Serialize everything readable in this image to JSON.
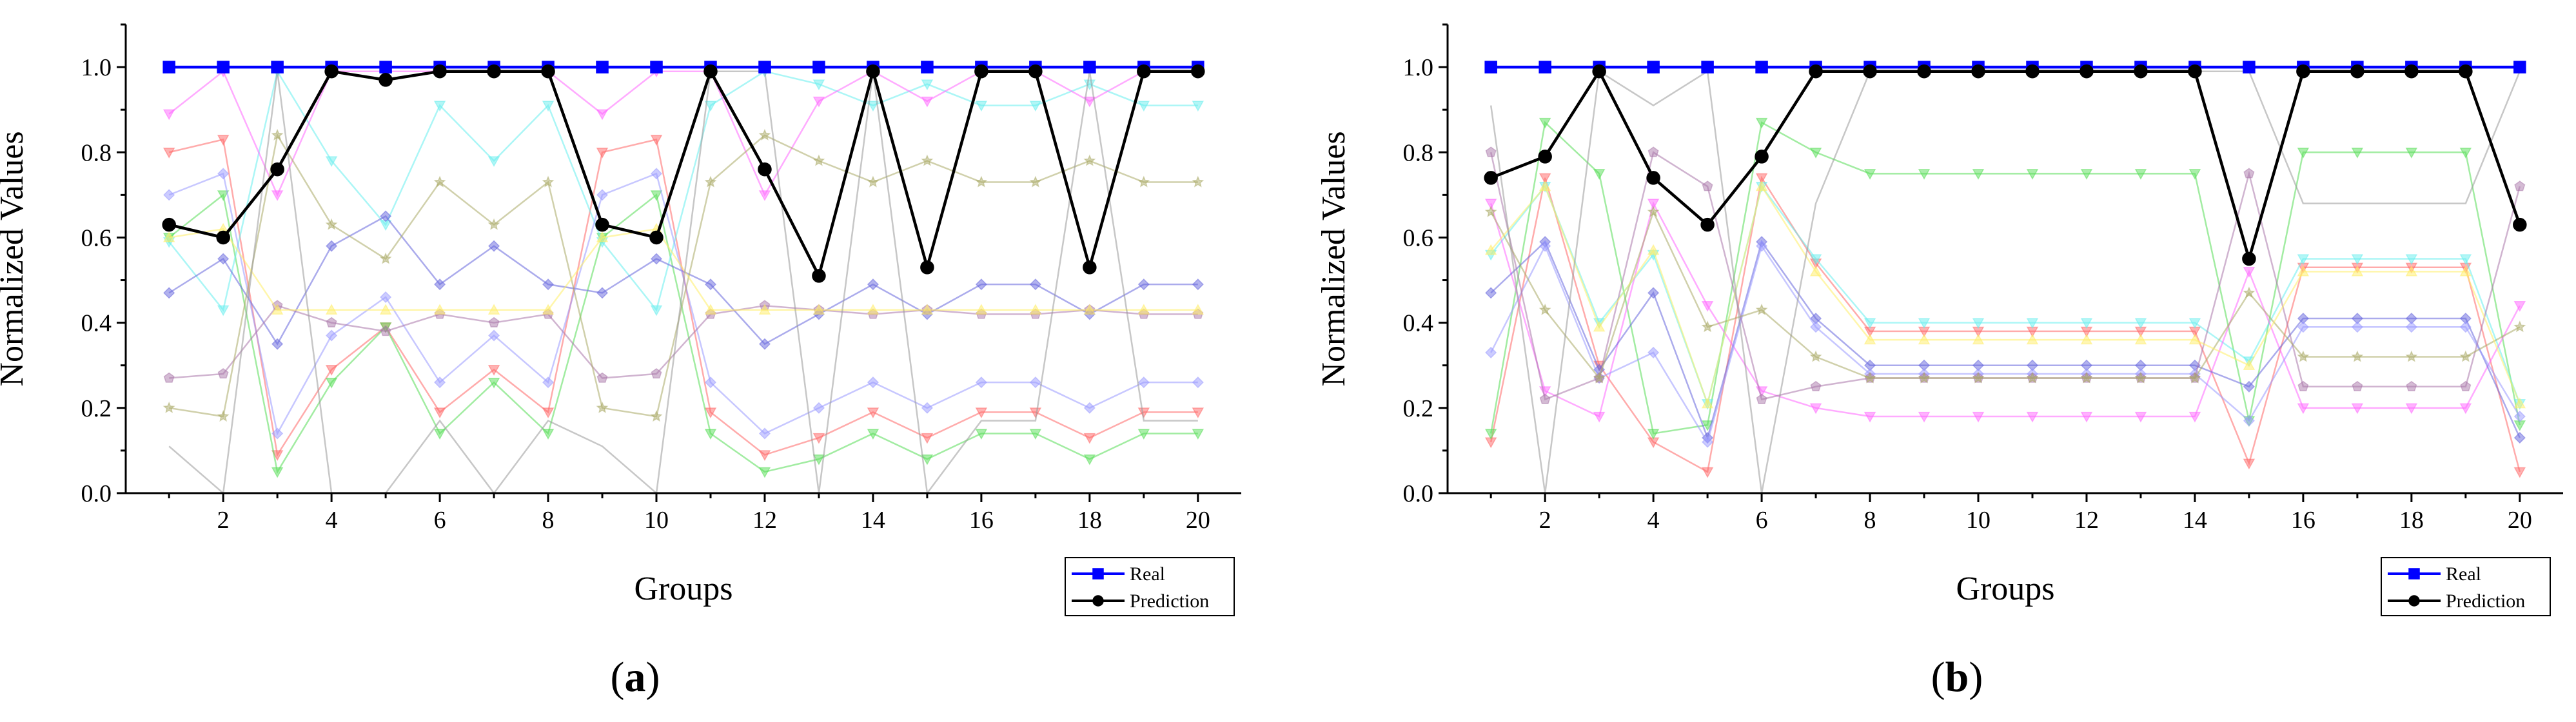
{
  "chart_data": [
    {
      "type": "line",
      "panel_label": "a",
      "xlabel": "Groups",
      "ylabel": "Normalized Values",
      "xlim": [
        0.2,
        20.8
      ],
      "ylim": [
        0,
        1.1
      ],
      "xticks": [
        2,
        4,
        6,
        8,
        10,
        12,
        14,
        16,
        18,
        20
      ],
      "xtick_labels": [
        "2",
        "4",
        "6",
        "8",
        "10",
        "12",
        "14",
        "16",
        "18",
        "20"
      ],
      "yticks": [
        0,
        0.2,
        0.4,
        0.6,
        0.8,
        1.0
      ],
      "ytick_labels": [
        "0.0",
        "0.2",
        "0.4",
        "0.6",
        "0.8",
        "1.0"
      ],
      "x": [
        1,
        2,
        3,
        4,
        5,
        6,
        7,
        8,
        9,
        10,
        11,
        12,
        13,
        14,
        15,
        16,
        17,
        18,
        19,
        20
      ],
      "legend_position": "bottom-right",
      "legend": [
        {
          "name": "Real",
          "color": "#0000ff",
          "marker": "square"
        },
        {
          "name": "Prediction",
          "color": "#000000",
          "marker": "circle"
        }
      ],
      "main_series": [
        {
          "name": "Real",
          "color": "#0000ff",
          "marker": "square",
          "values": [
            1,
            1,
            1,
            1,
            1,
            1,
            1,
            1,
            1,
            1,
            1,
            1,
            1,
            1,
            1,
            1,
            1,
            1,
            1,
            1
          ]
        },
        {
          "name": "Prediction",
          "color": "#000000",
          "marker": "circle",
          "values": [
            0.63,
            0.6,
            0.76,
            0.99,
            0.97,
            0.99,
            0.99,
            0.99,
            0.63,
            0.6,
            0.99,
            0.76,
            0.51,
            0.99,
            0.53,
            0.99,
            0.99,
            0.53,
            0.99,
            0.99
          ]
        }
      ],
      "background_series": [
        {
          "color": "#ff6666",
          "marker": "triangle-down",
          "values": [
            0.8,
            0.83,
            0.09,
            0.29,
            0.39,
            0.19,
            0.29,
            0.19,
            0.8,
            0.83,
            0.19,
            0.09,
            0.13,
            0.19,
            0.13,
            0.19,
            0.19,
            0.13,
            0.19,
            0.19
          ]
        },
        {
          "color": "#55dd55",
          "marker": "triangle-down",
          "values": [
            0.6,
            0.7,
            0.05,
            0.26,
            0.39,
            0.14,
            0.26,
            0.14,
            0.6,
            0.7,
            0.14,
            0.05,
            0.08,
            0.14,
            0.08,
            0.14,
            0.14,
            0.08,
            0.14,
            0.14
          ]
        },
        {
          "color": "#66eeee",
          "marker": "triangle-down",
          "values": [
            0.59,
            0.43,
            0.99,
            0.78,
            0.63,
            0.91,
            0.78,
            0.91,
            0.59,
            0.43,
            0.91,
            0.99,
            0.96,
            0.91,
            0.96,
            0.91,
            0.91,
            0.96,
            0.91,
            0.91
          ]
        },
        {
          "color": "#ff66ff",
          "marker": "triangle-down",
          "values": [
            0.89,
            0.99,
            0.7,
            0.99,
            0.99,
            0.99,
            0.99,
            0.99,
            0.89,
            0.99,
            0.99,
            0.7,
            0.92,
            0.99,
            0.92,
            0.99,
            0.99,
            0.92,
            0.99,
            0.99
          ]
        },
        {
          "color": "#6666dd",
          "marker": "diamond",
          "values": [
            0.47,
            0.55,
            0.35,
            0.58,
            0.65,
            0.49,
            0.58,
            0.49,
            0.47,
            0.55,
            0.49,
            0.35,
            0.42,
            0.49,
            0.42,
            0.49,
            0.49,
            0.42,
            0.49,
            0.49
          ]
        },
        {
          "color": "#9999ff",
          "marker": "diamond",
          "values": [
            0.7,
            0.75,
            0.14,
            0.37,
            0.46,
            0.26,
            0.37,
            0.26,
            0.7,
            0.75,
            0.26,
            0.14,
            0.2,
            0.26,
            0.2,
            0.26,
            0.26,
            0.2,
            0.26,
            0.26
          ]
        },
        {
          "color": "#aa77aa",
          "marker": "pentagon",
          "values": [
            0.27,
            0.28,
            0.44,
            0.4,
            0.38,
            0.42,
            0.4,
            0.42,
            0.27,
            0.28,
            0.42,
            0.44,
            0.43,
            0.42,
            0.43,
            0.42,
            0.42,
            0.43,
            0.42,
            0.42
          ]
        },
        {
          "color": "#aaaa66",
          "marker": "star",
          "values": [
            0.2,
            0.18,
            0.84,
            0.63,
            0.55,
            0.73,
            0.63,
            0.73,
            0.2,
            0.18,
            0.73,
            0.84,
            0.78,
            0.73,
            0.78,
            0.73,
            0.73,
            0.78,
            0.73,
            0.73
          ]
        },
        {
          "color": "#ffee66",
          "marker": "triangle",
          "values": [
            0.6,
            0.62,
            0.43,
            0.43,
            0.43,
            0.43,
            0.43,
            0.43,
            0.6,
            0.62,
            0.43,
            0.43,
            0.43,
            0.43,
            0.43,
            0.43,
            0.43,
            0.43,
            0.43,
            0.43
          ]
        },
        {
          "color": "#999999",
          "marker": "none",
          "values": [
            0.11,
            0.0,
            0.99,
            0.0,
            0.0,
            0.17,
            0.0,
            0.17,
            0.11,
            0.0,
            0.99,
            0.99,
            0.0,
            0.99,
            0.0,
            0.17,
            0.17,
            0.99,
            0.17,
            0.17
          ]
        }
      ]
    },
    {
      "type": "line",
      "panel_label": "b",
      "xlabel": "Groups",
      "ylabel": "Normalized Values",
      "xlim": [
        0.2,
        20.8
      ],
      "ylim": [
        0,
        1.1
      ],
      "xticks": [
        2,
        4,
        6,
        8,
        10,
        12,
        14,
        16,
        18,
        20
      ],
      "xtick_labels": [
        "2",
        "4",
        "6",
        "8",
        "10",
        "12",
        "14",
        "16",
        "18",
        "20"
      ],
      "yticks": [
        0,
        0.2,
        0.4,
        0.6,
        0.8,
        1.0
      ],
      "ytick_labels": [
        "0.0",
        "0.2",
        "0.4",
        "0.6",
        "0.8",
        "1.0"
      ],
      "x": [
        1,
        2,
        3,
        4,
        5,
        6,
        7,
        8,
        9,
        10,
        11,
        12,
        13,
        14,
        15,
        16,
        17,
        18,
        19,
        20
      ],
      "legend_position": "bottom-right",
      "legend": [
        {
          "name": "Real",
          "color": "#0000ff",
          "marker": "square"
        },
        {
          "name": "Prediction",
          "color": "#000000",
          "marker": "circle"
        }
      ],
      "main_series": [
        {
          "name": "Real",
          "color": "#0000ff",
          "marker": "square",
          "values": [
            1,
            1,
            1,
            1,
            1,
            1,
            1,
            1,
            1,
            1,
            1,
            1,
            1,
            1,
            1,
            1,
            1,
            1,
            1,
            1
          ]
        },
        {
          "name": "Prediction",
          "color": "#000000",
          "marker": "circle",
          "values": [
            0.74,
            0.79,
            0.99,
            0.74,
            0.63,
            0.79,
            0.99,
            0.99,
            0.99,
            0.99,
            0.99,
            0.99,
            0.99,
            0.99,
            0.55,
            0.99,
            0.99,
            0.99,
            0.99,
            0.63
          ]
        }
      ],
      "background_series": [
        {
          "color": "#ff6666",
          "marker": "triangle-down",
          "values": [
            0.12,
            0.74,
            0.3,
            0.12,
            0.05,
            0.74,
            0.54,
            0.38,
            0.38,
            0.38,
            0.38,
            0.38,
            0.38,
            0.38,
            0.07,
            0.53,
            0.53,
            0.53,
            0.53,
            0.05
          ]
        },
        {
          "color": "#55dd55",
          "marker": "triangle-down",
          "values": [
            0.14,
            0.87,
            0.75,
            0.14,
            0.16,
            0.87,
            0.8,
            0.75,
            0.75,
            0.75,
            0.75,
            0.75,
            0.75,
            0.75,
            0.17,
            0.8,
            0.8,
            0.8,
            0.8,
            0.16
          ]
        },
        {
          "color": "#66eeee",
          "marker": "triangle-down",
          "values": [
            0.56,
            0.72,
            0.4,
            0.56,
            0.21,
            0.72,
            0.55,
            0.4,
            0.4,
            0.4,
            0.4,
            0.4,
            0.4,
            0.4,
            0.31,
            0.55,
            0.55,
            0.55,
            0.55,
            0.21
          ]
        },
        {
          "color": "#ff66ff",
          "marker": "triangle-down",
          "values": [
            0.68,
            0.24,
            0.18,
            0.68,
            0.44,
            0.24,
            0.2,
            0.18,
            0.18,
            0.18,
            0.18,
            0.18,
            0.18,
            0.18,
            0.52,
            0.2,
            0.2,
            0.2,
            0.2,
            0.44
          ]
        },
        {
          "color": "#6666dd",
          "marker": "diamond",
          "values": [
            0.47,
            0.59,
            0.29,
            0.47,
            0.13,
            0.59,
            0.41,
            0.3,
            0.3,
            0.3,
            0.3,
            0.3,
            0.3,
            0.3,
            0.25,
            0.41,
            0.41,
            0.41,
            0.41,
            0.13
          ]
        },
        {
          "color": "#9999ff",
          "marker": "diamond",
          "values": [
            0.33,
            0.58,
            0.27,
            0.33,
            0.12,
            0.58,
            0.39,
            0.28,
            0.28,
            0.28,
            0.28,
            0.28,
            0.28,
            0.28,
            0.17,
            0.39,
            0.39,
            0.39,
            0.39,
            0.18
          ]
        },
        {
          "color": "#aa77aa",
          "marker": "pentagon",
          "values": [
            0.8,
            0.22,
            0.27,
            0.8,
            0.72,
            0.22,
            0.25,
            0.27,
            0.27,
            0.27,
            0.27,
            0.27,
            0.27,
            0.27,
            0.75,
            0.25,
            0.25,
            0.25,
            0.25,
            0.72
          ]
        },
        {
          "color": "#aaaa66",
          "marker": "star",
          "values": [
            0.66,
            0.43,
            0.27,
            0.66,
            0.39,
            0.43,
            0.32,
            0.27,
            0.27,
            0.27,
            0.27,
            0.27,
            0.27,
            0.27,
            0.47,
            0.32,
            0.32,
            0.32,
            0.32,
            0.39
          ]
        },
        {
          "color": "#ffee66",
          "marker": "triangle",
          "values": [
            0.57,
            0.72,
            0.39,
            0.57,
            0.21,
            0.72,
            0.52,
            0.36,
            0.36,
            0.36,
            0.36,
            0.36,
            0.36,
            0.36,
            0.3,
            0.52,
            0.52,
            0.52,
            0.52,
            0.21
          ]
        },
        {
          "color": "#999999",
          "marker": "none",
          "values": [
            0.91,
            0.0,
            0.99,
            0.91,
            0.99,
            0.0,
            0.68,
            0.99,
            0.99,
            0.99,
            0.99,
            0.99,
            0.99,
            0.99,
            0.99,
            0.68,
            0.68,
            0.68,
            0.68,
            0.99
          ]
        }
      ]
    }
  ]
}
